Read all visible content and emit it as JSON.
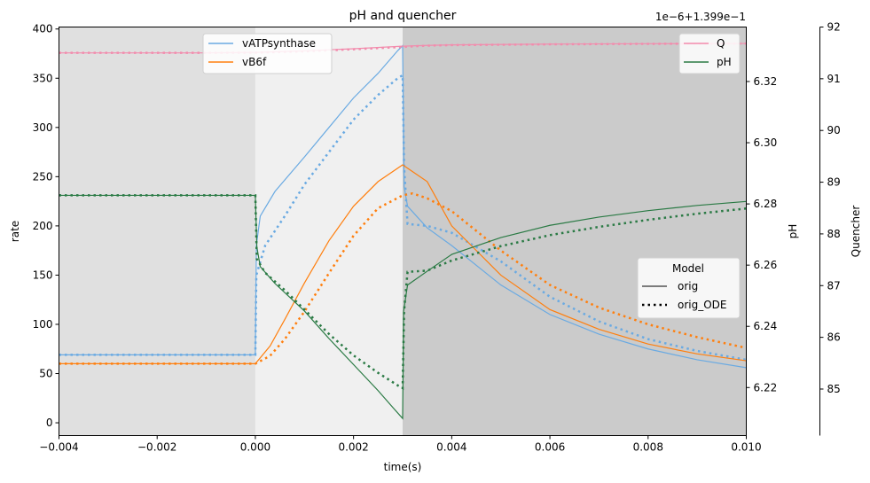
{
  "chart_data": {
    "type": "line",
    "title": "pH and quencher",
    "xlabel": "time(s)",
    "xlim": [
      -0.004,
      0.01
    ],
    "x_ticks": [
      "−0.004",
      "−0.002",
      "0.000",
      "0.002",
      "0.004",
      "0.006",
      "0.008",
      "0.010"
    ],
    "x_tick_values": [
      -0.004,
      -0.002,
      0.0,
      0.002,
      0.004,
      0.006,
      0.008,
      0.01
    ],
    "axes": {
      "rate": {
        "label": "rate",
        "ylim": [
          -13,
          402
        ],
        "ticks": [
          0,
          50,
          100,
          150,
          200,
          250,
          300,
          350,
          400
        ]
      },
      "pH": {
        "label": "pH",
        "ylim": [
          6.2043,
          6.3378
        ],
        "ticks": [
          6.22,
          6.24,
          6.26,
          6.28,
          6.3,
          6.32
        ],
        "tick_labels": [
          "6.22",
          "6.24",
          "6.26",
          "6.28",
          "6.30",
          "6.32"
        ],
        "offset_text": "1e−6+1.399e−1"
      },
      "quencher": {
        "label": "Quencher",
        "ylim": [
          84.1,
          92.0
        ],
        "ticks": [
          85,
          86,
          87,
          88,
          89,
          90,
          91,
          92
        ]
      }
    },
    "light_phases": [
      {
        "start": -0.004,
        "end": 0.0,
        "color": "#e0e0e0"
      },
      {
        "start": 0.0,
        "end": 0.003,
        "color": "#f0f0f0"
      },
      {
        "start": 0.003,
        "end": 0.01,
        "color": "#cbcbcb"
      }
    ],
    "series": [
      {
        "name": "vATPsynthase",
        "axis": "rate",
        "color": "#6aaae2",
        "model": "orig",
        "points": [
          [
            -0.004,
            69
          ],
          [
            0.0,
            69
          ],
          [
            2e-05,
            180
          ],
          [
            0.0001,
            210
          ],
          [
            0.0004,
            235
          ],
          [
            0.001,
            270
          ],
          [
            0.0015,
            300
          ],
          [
            0.002,
            330
          ],
          [
            0.0025,
            355
          ],
          [
            0.0029,
            378
          ],
          [
            0.003,
            383
          ],
          [
            0.00303,
            240
          ],
          [
            0.0031,
            220
          ],
          [
            0.0035,
            198
          ],
          [
            0.004,
            180
          ],
          [
            0.005,
            140
          ],
          [
            0.006,
            110
          ],
          [
            0.007,
            90
          ],
          [
            0.008,
            75
          ],
          [
            0.009,
            64
          ],
          [
            0.01,
            56
          ]
        ]
      },
      {
        "name": "vATPsynthase",
        "axis": "rate",
        "color": "#6aaae2",
        "model": "orig_ODE",
        "points": [
          [
            -0.004,
            69
          ],
          [
            0.0,
            69
          ],
          [
            2e-05,
            150
          ],
          [
            0.0002,
            180
          ],
          [
            0.0006,
            210
          ],
          [
            0.001,
            242
          ],
          [
            0.0015,
            275
          ],
          [
            0.002,
            308
          ],
          [
            0.0025,
            333
          ],
          [
            0.0029,
            350
          ],
          [
            0.003,
            353
          ],
          [
            0.00303,
            260
          ],
          [
            0.0031,
            202
          ],
          [
            0.0035,
            200
          ],
          [
            0.004,
            193
          ],
          [
            0.005,
            164
          ],
          [
            0.006,
            128
          ],
          [
            0.007,
            103
          ],
          [
            0.008,
            85
          ],
          [
            0.009,
            73
          ],
          [
            0.01,
            64
          ]
        ]
      },
      {
        "name": "vB6f",
        "axis": "rate",
        "color": "#ff7f0e",
        "model": "orig",
        "points": [
          [
            -0.004,
            60
          ],
          [
            0.0,
            60
          ],
          [
            0.0003,
            78
          ],
          [
            0.0006,
            105
          ],
          [
            0.001,
            142
          ],
          [
            0.0015,
            185
          ],
          [
            0.002,
            220
          ],
          [
            0.0025,
            245
          ],
          [
            0.003,
            262
          ],
          [
            0.0035,
            245
          ],
          [
            0.004,
            200
          ],
          [
            0.005,
            150
          ],
          [
            0.006,
            115
          ],
          [
            0.007,
            95
          ],
          [
            0.008,
            80
          ],
          [
            0.009,
            70
          ],
          [
            0.01,
            63
          ]
        ]
      },
      {
        "name": "vB6f",
        "axis": "rate",
        "color": "#ff7f0e",
        "model": "orig_ODE",
        "points": [
          [
            -0.004,
            60
          ],
          [
            0.0,
            60
          ],
          [
            0.0003,
            68
          ],
          [
            0.0006,
            85
          ],
          [
            0.001,
            113
          ],
          [
            0.0015,
            152
          ],
          [
            0.002,
            190
          ],
          [
            0.0025,
            218
          ],
          [
            0.003,
            231
          ],
          [
            0.0032,
            233
          ],
          [
            0.0035,
            228
          ],
          [
            0.004,
            215
          ],
          [
            0.005,
            175
          ],
          [
            0.006,
            140
          ],
          [
            0.007,
            117
          ],
          [
            0.008,
            100
          ],
          [
            0.009,
            87
          ],
          [
            0.01,
            76
          ]
        ]
      },
      {
        "name": "pH",
        "axis": "pH",
        "color": "#2a7a44",
        "model": "orig",
        "points": [
          [
            -0.004,
            6.2828
          ],
          [
            0.0,
            6.2828
          ],
          [
            3e-05,
            6.266
          ],
          [
            0.0001,
            6.2595
          ],
          [
            0.0004,
            6.254
          ],
          [
            0.001,
            6.245
          ],
          [
            0.0015,
            6.236
          ],
          [
            0.002,
            6.2275
          ],
          [
            0.0025,
            6.219
          ],
          [
            0.0028,
            6.2135
          ],
          [
            0.003,
            6.2099
          ],
          [
            0.00302,
            6.245
          ],
          [
            0.0031,
            6.2535
          ],
          [
            0.0035,
            6.258
          ],
          [
            0.004,
            6.2635
          ],
          [
            0.005,
            6.269
          ],
          [
            0.006,
            6.273
          ],
          [
            0.007,
            6.2757
          ],
          [
            0.008,
            6.2778
          ],
          [
            0.009,
            6.2795
          ],
          [
            0.01,
            6.2808
          ]
        ]
      },
      {
        "name": "pH",
        "axis": "pH",
        "color": "#2a7a44",
        "model": "orig_ODE",
        "points": [
          [
            -0.004,
            6.2828
          ],
          [
            0.0,
            6.2828
          ],
          [
            3e-05,
            6.262
          ],
          [
            0.0002,
            6.2575
          ],
          [
            0.0006,
            6.2518
          ],
          [
            0.001,
            6.2455
          ],
          [
            0.0015,
            6.2375
          ],
          [
            0.002,
            6.2305
          ],
          [
            0.0025,
            6.2248
          ],
          [
            0.0029,
            6.2207
          ],
          [
            0.003,
            6.2198
          ],
          [
            0.00303,
            6.245
          ],
          [
            0.0031,
            6.2578
          ],
          [
            0.0035,
            6.2582
          ],
          [
            0.004,
            6.2615
          ],
          [
            0.005,
            6.2662
          ],
          [
            0.006,
            6.2698
          ],
          [
            0.007,
            6.2725
          ],
          [
            0.008,
            6.2748
          ],
          [
            0.009,
            6.2768
          ],
          [
            0.01,
            6.2785
          ]
        ]
      },
      {
        "name": "Q",
        "axis": "quencher",
        "color": "#f28cad",
        "model": "orig",
        "points": [
          [
            -0.004,
            91.5
          ],
          [
            -0.001,
            91.5
          ],
          [
            0.0,
            91.51
          ],
          [
            0.001,
            91.54
          ],
          [
            0.002,
            91.58
          ],
          [
            0.003,
            91.63
          ],
          [
            0.0035,
            91.645
          ],
          [
            0.004,
            91.655
          ],
          [
            0.006,
            91.67
          ],
          [
            0.008,
            91.678
          ],
          [
            0.01,
            91.682
          ]
        ]
      },
      {
        "name": "Q",
        "axis": "quencher",
        "color": "#f28cad",
        "model": "orig_ODE",
        "points": [
          [
            -0.004,
            91.5
          ],
          [
            -0.001,
            91.5
          ],
          [
            0.0,
            91.505
          ],
          [
            0.001,
            91.53
          ],
          [
            0.002,
            91.57
          ],
          [
            0.003,
            91.615
          ],
          [
            0.0035,
            91.64
          ],
          [
            0.004,
            91.65
          ],
          [
            0.006,
            91.665
          ],
          [
            0.008,
            91.675
          ],
          [
            0.01,
            91.68
          ]
        ]
      }
    ],
    "legend_rate": {
      "placement": "upper-left",
      "entries": [
        "vATPsynthase",
        "vB6f"
      ]
    },
    "legend_right": {
      "placement": "upper-right",
      "entries": [
        "Q",
        "pH"
      ]
    },
    "legend_model": {
      "placement": "center-right",
      "title": "Model",
      "entries": [
        "orig",
        "orig_ODE"
      ]
    }
  }
}
